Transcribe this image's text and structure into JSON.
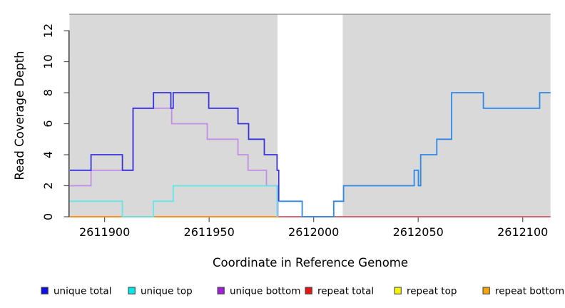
{
  "figure": {
    "x_axis_label": "Coordinate in Reference Genome",
    "y_axis_label": "Read Coverage Depth"
  },
  "legend": {
    "items": [
      {
        "label": "unique total",
        "color": "#0f0fe8"
      },
      {
        "label": "unique top",
        "color": "#00e8e8"
      },
      {
        "label": "unique bottom",
        "color": "#a11fd4"
      },
      {
        "label": "repeat total",
        "color": "#e81414"
      },
      {
        "label": "repeat top",
        "color": "#f2f20c"
      },
      {
        "label": "repeat bottom",
        "color": "#f5a50a"
      }
    ]
  },
  "chart_data": {
    "type": "line",
    "subtype": "step-coverage",
    "title": "",
    "xlabel": "Coordinate in Reference Genome",
    "ylabel": "Read Coverage Depth",
    "x_ticks": [
      2611900,
      2611950,
      2612000,
      2612050,
      2612100
    ],
    "y_ticks": [
      0,
      2,
      4,
      6,
      8,
      10,
      12
    ],
    "x_range": [
      2611883.4,
      2612113.3
    ],
    "y_range": [
      0,
      13.06
    ],
    "grid": false,
    "legend_position": "bottom",
    "plot_background": "#d9d9d9",
    "top_border_color": "#878787",
    "gap_band": {
      "x0": 2611982.7,
      "x1": 2612013.9,
      "color": "#ffffff"
    },
    "series": [
      {
        "name": "repeat top",
        "color": "#f2f20c",
        "points": [
          [
            2611883.4,
            0
          ],
          [
            2612113.3,
            0
          ]
        ]
      },
      {
        "name": "repeat total",
        "color": "#d6527c",
        "points": [
          [
            2611883.4,
            0
          ],
          [
            2612113.3,
            0
          ]
        ]
      },
      {
        "name": "repeat bottom",
        "color": "#ff9415",
        "points": [
          [
            2611883.4,
            0
          ],
          [
            2611983.3,
            0
          ]
        ]
      },
      {
        "name": "unique bottom",
        "color": "#c28fe4",
        "points": [
          [
            2611883.4,
            2
          ],
          [
            2611893.5,
            2
          ],
          [
            2611893.5,
            3
          ],
          [
            2611913.6,
            3
          ],
          [
            2611913.6,
            7
          ],
          [
            2611932.1,
            7
          ],
          [
            2611932.1,
            6
          ],
          [
            2611949.1,
            6
          ],
          [
            2611949.1,
            5
          ],
          [
            2611963.8,
            5
          ],
          [
            2611963.8,
            4
          ],
          [
            2611968.6,
            4
          ],
          [
            2611968.6,
            3
          ],
          [
            2611977.4,
            3
          ],
          [
            2611977.4,
            2
          ],
          [
            2611982.9,
            2
          ],
          [
            2611982.9,
            0
          ]
        ]
      },
      {
        "name": "unique top",
        "color": "#62e6e8",
        "points": [
          [
            2611883.4,
            1
          ],
          [
            2611908.5,
            1
          ],
          [
            2611908.5,
            0
          ],
          [
            2611923.3,
            0
          ],
          [
            2611923.3,
            1
          ],
          [
            2611932.8,
            1
          ],
          [
            2611932.8,
            2
          ],
          [
            2611982.5,
            2
          ],
          [
            2611982.5,
            0
          ]
        ]
      },
      {
        "name": "unique total (left of gap)",
        "color": "#3933dc",
        "points": [
          [
            2611883.4,
            3
          ],
          [
            2611893.5,
            3
          ],
          [
            2611893.5,
            4
          ],
          [
            2611908.5,
            4
          ],
          [
            2611908.5,
            3
          ],
          [
            2611913.6,
            3
          ],
          [
            2611913.6,
            7
          ],
          [
            2611923.4,
            7
          ],
          [
            2611923.4,
            8
          ],
          [
            2611931.7,
            8
          ],
          [
            2611931.7,
            7
          ],
          [
            2611932.8,
            7
          ],
          [
            2611932.8,
            8
          ],
          [
            2611949.8,
            8
          ],
          [
            2611949.8,
            7
          ],
          [
            2611963.8,
            7
          ],
          [
            2611963.8,
            6
          ],
          [
            2611968.9,
            6
          ],
          [
            2611968.9,
            5
          ],
          [
            2611976.4,
            5
          ],
          [
            2611976.4,
            4
          ],
          [
            2611982.5,
            4
          ],
          [
            2611982.5,
            3
          ],
          [
            2611983.3,
            3
          ],
          [
            2611983.3,
            1
          ]
        ]
      },
      {
        "name": "unique total (right of gap)",
        "color": "#2f87e8",
        "points": [
          [
            2611983.3,
            1
          ],
          [
            2611994.5,
            1
          ],
          [
            2611994.5,
            0
          ],
          [
            2612009.6,
            0
          ],
          [
            2612009.6,
            1
          ],
          [
            2612014.3,
            1
          ],
          [
            2612014.3,
            2
          ],
          [
            2612048.1,
            2
          ],
          [
            2612048.1,
            3
          ],
          [
            2612050.1,
            3
          ],
          [
            2612050.1,
            2
          ],
          [
            2612051.2,
            2
          ],
          [
            2612051.2,
            4
          ],
          [
            2612058.9,
            4
          ],
          [
            2612058.9,
            5
          ],
          [
            2612066.0,
            5
          ],
          [
            2612066.0,
            8
          ],
          [
            2612081.2,
            8
          ],
          [
            2612081.2,
            7
          ],
          [
            2612108.1,
            7
          ],
          [
            2612108.1,
            8
          ],
          [
            2612113.3,
            8
          ]
        ]
      }
    ]
  }
}
